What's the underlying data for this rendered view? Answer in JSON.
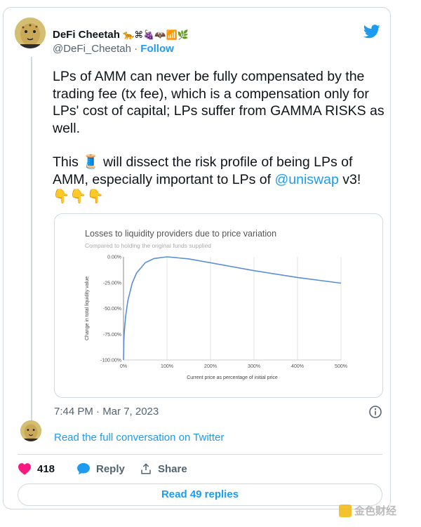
{
  "author": {
    "name": "DeFi Cheetah",
    "name_emojis": "🐆⌘🍇🦇📶🌿",
    "handle": "@DeFi_Cheetah",
    "separator": "·",
    "follow_label": "Follow"
  },
  "tweet": {
    "paragraph1": "LPs of AMM can never be fully compensated by the trading fee (tx fee), which is a compensation only for LPs' cost of capital; LPs suffer from GAMMA RISKS as well.",
    "p2_before": "This 🧵 will dissect the risk profile of being LPs of AMM, especially important to LPs of ",
    "mention": "@uniswap",
    "p2_after": " v3!",
    "pointing_emojis": "👇👇👇"
  },
  "chart_data": {
    "type": "line",
    "title": "Losses to liquidity providers due to price variation",
    "subtitle": "Compared to holding the original funds supplied",
    "xlabel": "Current price as percentage of initial price",
    "ylabel": "Change in total liquidity value",
    "x_ticks": [
      "0%",
      "100%",
      "200%",
      "300%",
      "400%",
      "500%"
    ],
    "y_ticks": [
      "0.00%",
      "-25.00%",
      "-50.00%",
      "-75.00%",
      "-100.00%"
    ],
    "xlim": [
      0,
      500
    ],
    "ylim": [
      -100,
      0
    ],
    "grid": "vertical",
    "line_color": "#5a8fd6",
    "x": [
      0,
      1,
      2,
      5,
      10,
      20,
      30,
      50,
      70,
      100,
      150,
      200,
      300,
      400,
      500
    ],
    "y": [
      -100,
      -80.2,
      -72.3,
      -57.4,
      -42.5,
      -25.5,
      -15.7,
      -5.7,
      -1.6,
      0,
      -2.0,
      -5.7,
      -13.4,
      -20.0,
      -25.5
    ]
  },
  "footer": {
    "timestamp": "7:44 PM · Mar 7, 2023",
    "read_full": "Read the full conversation on Twitter",
    "likes": "418",
    "reply_label": "Reply",
    "share_label": "Share",
    "read_replies": "Read 49 replies"
  },
  "watermark": "金色财经",
  "colors": {
    "accent": "#1d9bf0",
    "like": "#f91880",
    "border": "#cfd9de",
    "muted": "#536471"
  },
  "icons": {
    "logo": "twitter-bird-icon",
    "info": "info-icon",
    "like": "heart-icon",
    "reply": "speech-bubble-icon",
    "share": "share-icon"
  }
}
